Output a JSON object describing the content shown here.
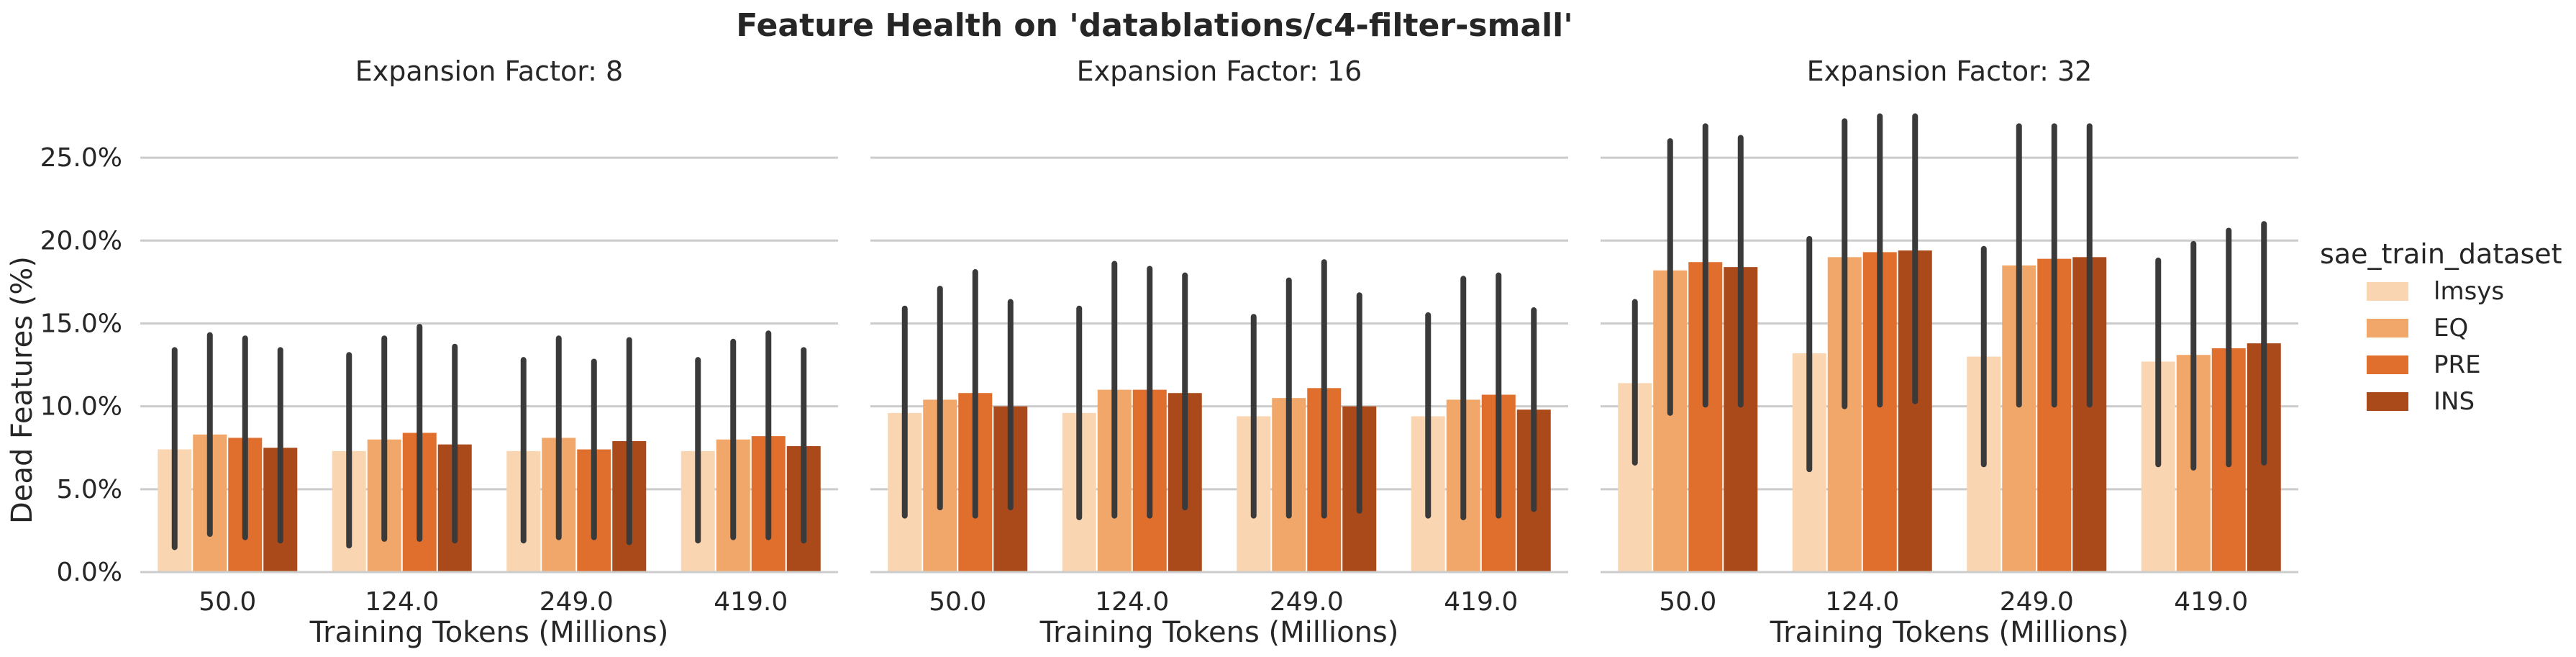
{
  "chart_data": {
    "type": "bar",
    "title": "Feature Health on 'datablations/c4-filter-small'",
    "ylabel": "Dead Features (%)",
    "xlabel": "Training Tokens (Millions)",
    "categories": [
      "50.0",
      "124.0",
      "249.0",
      "419.0"
    ],
    "ylim": [
      0,
      28
    ],
    "yticks": [
      0,
      5,
      10,
      15,
      20,
      25
    ],
    "ytick_labels": [
      "0.0%",
      "5.0%",
      "10.0%",
      "15.0%",
      "20.0%",
      "25.0%"
    ],
    "grid": "horizontal",
    "legend": {
      "title": "sae_train_dataset",
      "placement": "right",
      "entries": [
        "lmsys",
        "EQ",
        "PRE",
        "INS"
      ]
    },
    "colors": {
      "lmsys": "#f9d5b1",
      "EQ": "#f1a769",
      "PRE": "#e06e2d",
      "INS": "#aa4a1b",
      "error_bar": "#3a3a3a",
      "grid": "#cccccc"
    },
    "panels": [
      {
        "title": "Expansion Factor: 8",
        "series": [
          {
            "name": "lmsys",
            "values": [
              7.4,
              7.3,
              7.3,
              7.3
            ],
            "err_low": [
              1.5,
              1.6,
              1.9,
              1.9
            ],
            "err_high": [
              13.4,
              13.1,
              12.8,
              12.8
            ]
          },
          {
            "name": "EQ",
            "values": [
              8.3,
              8.0,
              8.1,
              8.0
            ],
            "err_low": [
              2.3,
              2.0,
              2.1,
              2.1
            ],
            "err_high": [
              14.3,
              14.1,
              14.1,
              13.9
            ]
          },
          {
            "name": "PRE",
            "values": [
              8.1,
              8.4,
              7.4,
              8.2
            ],
            "err_low": [
              2.1,
              2.0,
              2.1,
              2.1
            ],
            "err_high": [
              14.1,
              14.8,
              12.7,
              14.4
            ]
          },
          {
            "name": "INS",
            "values": [
              7.5,
              7.7,
              7.9,
              7.6
            ],
            "err_low": [
              1.9,
              1.9,
              1.8,
              1.9
            ],
            "err_high": [
              13.4,
              13.6,
              14.0,
              13.4
            ]
          }
        ]
      },
      {
        "title": "Expansion Factor: 16",
        "series": [
          {
            "name": "lmsys",
            "values": [
              9.6,
              9.6,
              9.4,
              9.4
            ],
            "err_low": [
              3.4,
              3.3,
              3.4,
              3.4
            ],
            "err_high": [
              15.9,
              15.9,
              15.4,
              15.5
            ]
          },
          {
            "name": "EQ",
            "values": [
              10.4,
              11.0,
              10.5,
              10.4
            ],
            "err_low": [
              3.9,
              3.4,
              3.4,
              3.3
            ],
            "err_high": [
              17.1,
              18.6,
              17.6,
              17.7
            ]
          },
          {
            "name": "PRE",
            "values": [
              10.8,
              11.0,
              11.1,
              10.7
            ],
            "err_low": [
              3.4,
              3.4,
              3.4,
              3.4
            ],
            "err_high": [
              18.1,
              18.3,
              18.7,
              17.9
            ]
          },
          {
            "name": "INS",
            "values": [
              10.0,
              10.8,
              10.0,
              9.8
            ],
            "err_low": [
              3.9,
              3.9,
              3.7,
              3.8
            ],
            "err_high": [
              16.3,
              17.9,
              16.7,
              15.8
            ]
          }
        ]
      },
      {
        "title": "Expansion Factor: 32",
        "series": [
          {
            "name": "lmsys",
            "values": [
              11.4,
              13.2,
              13.0,
              12.7
            ],
            "err_low": [
              6.6,
              6.2,
              6.5,
              6.5
            ],
            "err_high": [
              16.3,
              20.1,
              19.5,
              18.8
            ]
          },
          {
            "name": "EQ",
            "values": [
              18.2,
              19.0,
              18.5,
              13.1
            ],
            "err_low": [
              9.6,
              10.0,
              10.1,
              6.3
            ],
            "err_high": [
              26.0,
              27.2,
              26.9,
              19.8
            ]
          },
          {
            "name": "PRE",
            "values": [
              18.7,
              19.3,
              18.9,
              13.5
            ],
            "err_low": [
              10.1,
              10.1,
              10.1,
              6.5
            ],
            "err_high": [
              26.9,
              27.5,
              26.9,
              20.6
            ]
          },
          {
            "name": "INS",
            "values": [
              18.4,
              19.4,
              19.0,
              13.8
            ],
            "err_low": [
              10.1,
              10.3,
              10.1,
              6.6
            ],
            "err_high": [
              26.2,
              27.5,
              26.9,
              21.0
            ]
          }
        ]
      }
    ]
  }
}
